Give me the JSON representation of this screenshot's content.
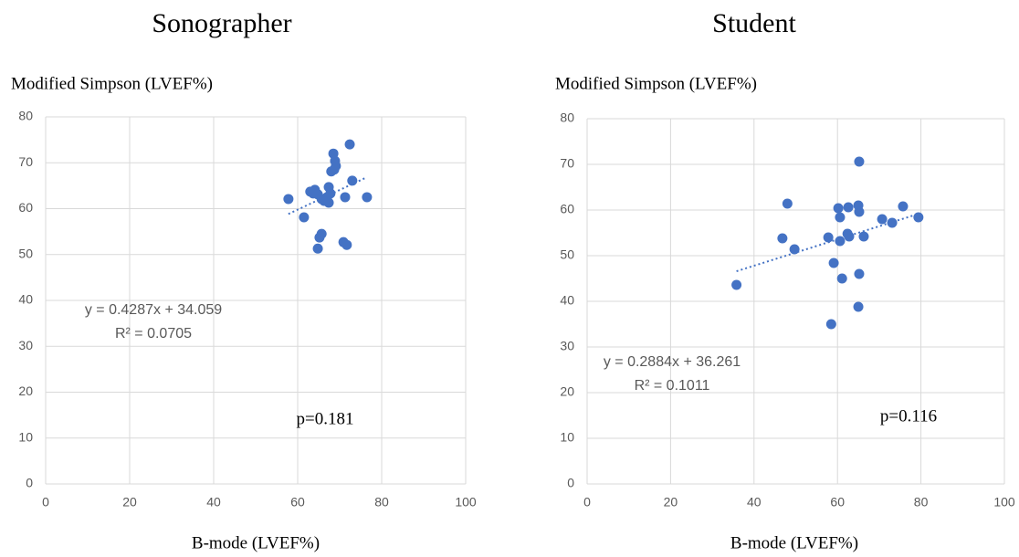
{
  "chart_data": [
    {
      "type": "scatter",
      "title": "Sonographer",
      "y_label": "Modified Simpson (LVEF%)",
      "x_label": "B-mode (LVEF%)",
      "x": [
        57.8,
        61.5,
        63.0,
        63.7,
        64.1,
        64.8,
        65.7,
        65.2,
        64.8,
        65.7,
        66.3,
        67.0,
        67.4,
        67.4,
        67.8,
        68.0,
        68.5,
        68.9,
        69.1,
        68.7,
        71.3,
        70.9,
        71.7,
        72.4,
        73.0,
        76.5
      ],
      "values": [
        62.1,
        58.1,
        63.7,
        63.3,
        64.1,
        63.1,
        54.5,
        53.7,
        51.3,
        62.1,
        61.7,
        62.5,
        64.7,
        61.3,
        63.3,
        68.1,
        72.0,
        70.4,
        69.3,
        68.5,
        62.5,
        52.7,
        52.1,
        74.0,
        66.1,
        62.5
      ],
      "color": "#4472c4",
      "xlim": [
        0,
        100
      ],
      "ylim": [
        0,
        80
      ],
      "xticks": [
        0,
        20,
        40,
        60,
        80,
        100
      ],
      "yticks": [
        0,
        10,
        20,
        30,
        40,
        50,
        60,
        70,
        80
      ],
      "grid": true,
      "trendline": {
        "slope": 0.4287,
        "intercept": 34.059,
        "equation": "y = 0.4287x + 34.059",
        "r_squared": "R² = 0.0705"
      },
      "annotation": "p=0.181"
    },
    {
      "type": "scatter",
      "title": "Student",
      "y_label": "Modified Simpson (LVEF%)",
      "x_label": "B-mode (LVEF%)",
      "x": [
        35.8,
        48.0,
        46.8,
        49.7,
        57.8,
        59.1,
        58.5,
        60.2,
        60.6,
        60.6,
        61.1,
        62.4,
        62.8,
        62.6,
        65.0,
        65.2,
        65.2,
        65.2,
        65.0,
        66.3,
        70.7,
        73.1,
        75.7,
        79.4
      ],
      "values": [
        43.6,
        61.4,
        53.8,
        51.4,
        54.0,
        48.4,
        35.0,
        60.4,
        58.4,
        53.2,
        45.0,
        54.8,
        54.2,
        60.6,
        61.0,
        59.6,
        70.6,
        46.0,
        38.8,
        54.2,
        58.0,
        57.2,
        60.8,
        58.4
      ],
      "color": "#4472c4",
      "xlim": [
        0,
        100
      ],
      "ylim": [
        0,
        80
      ],
      "xticks": [
        0,
        20,
        40,
        60,
        80,
        100
      ],
      "yticks": [
        0,
        10,
        20,
        30,
        40,
        50,
        60,
        70,
        80
      ],
      "grid": true,
      "trendline": {
        "slope": 0.2884,
        "intercept": 36.261,
        "equation": "y = 0.2884x + 36.261",
        "r_squared": "R² = 0.1011"
      },
      "annotation": "p=0.116"
    }
  ]
}
